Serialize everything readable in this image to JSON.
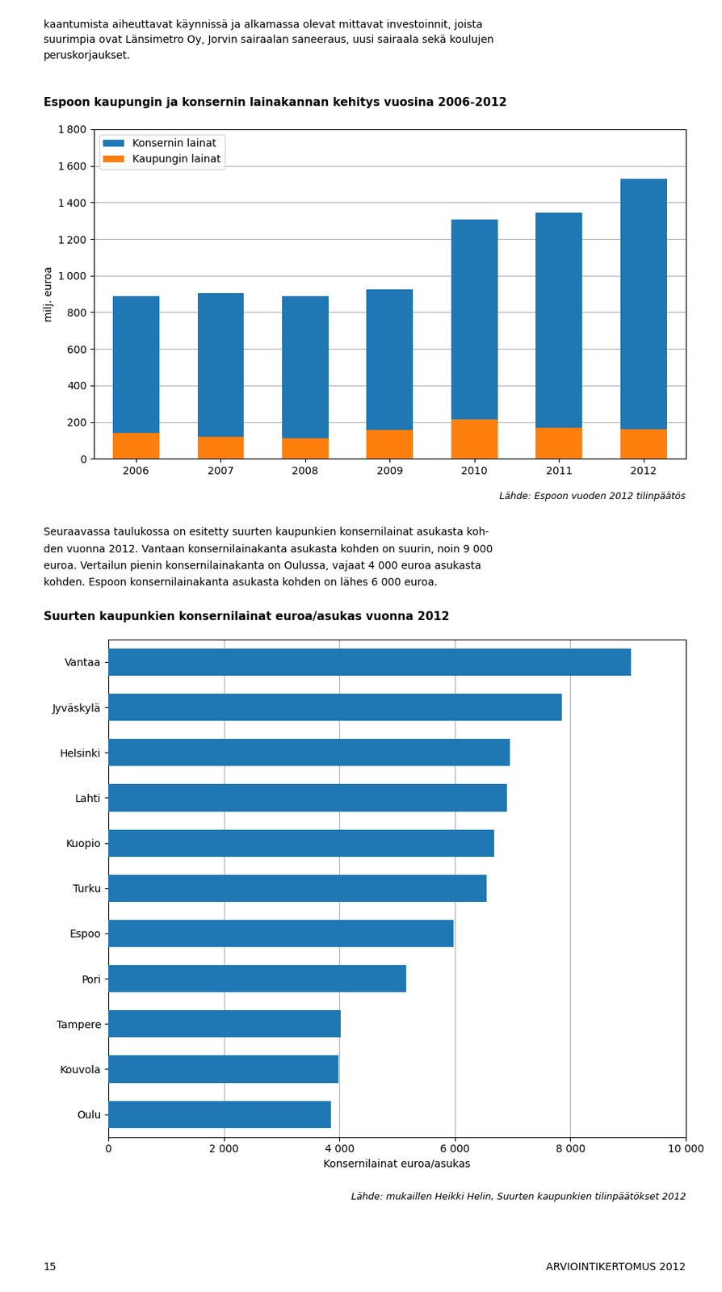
{
  "chart_data": [
    {
      "type": "bar",
      "title": "Espoon kaupungin ja konsernin lainakannan kehitys vuosina 2006-2012",
      "categories": [
        "2006",
        "2007",
        "2008",
        "2009",
        "2010",
        "2011",
        "2012"
      ],
      "series": [
        {
          "name": "Konsernin lainat",
          "values": [
            890,
            905,
            888,
            925,
            1305,
            1345,
            1530
          ]
        },
        {
          "name": "Kaupungin lainat",
          "values": [
            140,
            120,
            110,
            155,
            215,
            170,
            160
          ]
        }
      ],
      "stacked": false,
      "y_label": "milj. euroa",
      "ylim": [
        0,
        1800
      ],
      "yticks": [
        0,
        200,
        400,
        600,
        800,
        {
          "value": 1000,
          "label": "1 000"
        },
        {
          "value": 1200,
          "label": "1 200"
        },
        {
          "value": 1400,
          "label": "1 400"
        },
        {
          "value": 1600,
          "label": "1 600"
        },
        {
          "value": 1800,
          "label": "1 800"
        }
      ],
      "grid": true,
      "legend": "upper left",
      "annotations": [
        "Lähde: Espoon vuoden 2012 tilinpäätös"
      ]
    },
    {
      "type": "bar",
      "orientation": "horizontal",
      "title": "Suurten kaupunkien konsernilainat euroa/asukas vuonna 2012",
      "categories": [
        "Vantaa",
        "Jyväskylä",
        "Helsinki",
        "Lahti",
        "Kuopio",
        "Turku",
        "Espoo",
        "Pori",
        "Tampere",
        "Kouvola",
        "Oulu"
      ],
      "values": [
        9050,
        7850,
        6950,
        6900,
        6680,
        6550,
        5980,
        5150,
        4020,
        3980,
        3850
      ],
      "x_label": "Konsernilainat euroa/asukas",
      "xlim": [
        0,
        10000
      ],
      "xticks": [
        0,
        {
          "value": 2000,
          "label": "2 000"
        },
        {
          "value": 4000,
          "label": "4 000"
        },
        {
          "value": 6000,
          "label": "6 000"
        },
        {
          "value": 8000,
          "label": "8 000"
        },
        {
          "value": 10000,
          "label": "10 000"
        }
      ],
      "grid": true,
      "annotations": [
        "Lähde: mukaillen Heikki Helin, Suurten kaupunkien tilinpäätökset 2012"
      ]
    }
  ],
  "page_text": {
    "header": [
      "kaantumista aiheuttavat käynnissä ja alkamassa olevat mittavat investoinnit, joista",
      "suurimpia ovat Länsimetro Oy, Jorvin sairaalan saneeraus, uusi sairaala sekä koulujen",
      "peruskorjaukset."
    ],
    "body": [
      "Seuraavassa taulukossa on esitetty suurten kaupunkien konsernilainat asukasta koh-",
      "den vuonna 2012. Vantaan konsernilainakanta asukasta kohden on suurin, noin 9 000",
      "euroa. Vertailun pienin konsernilainakanta on Oulussa, vajaat 4 000 euroa asukasta",
      "kohden. Espoon konsernilainakanta asukasta kohden on lähes 6 000 euroa."
    ],
    "footer": [
      "15",
      "ARVIOINTIKERTOMUS 2012"
    ]
  }
}
